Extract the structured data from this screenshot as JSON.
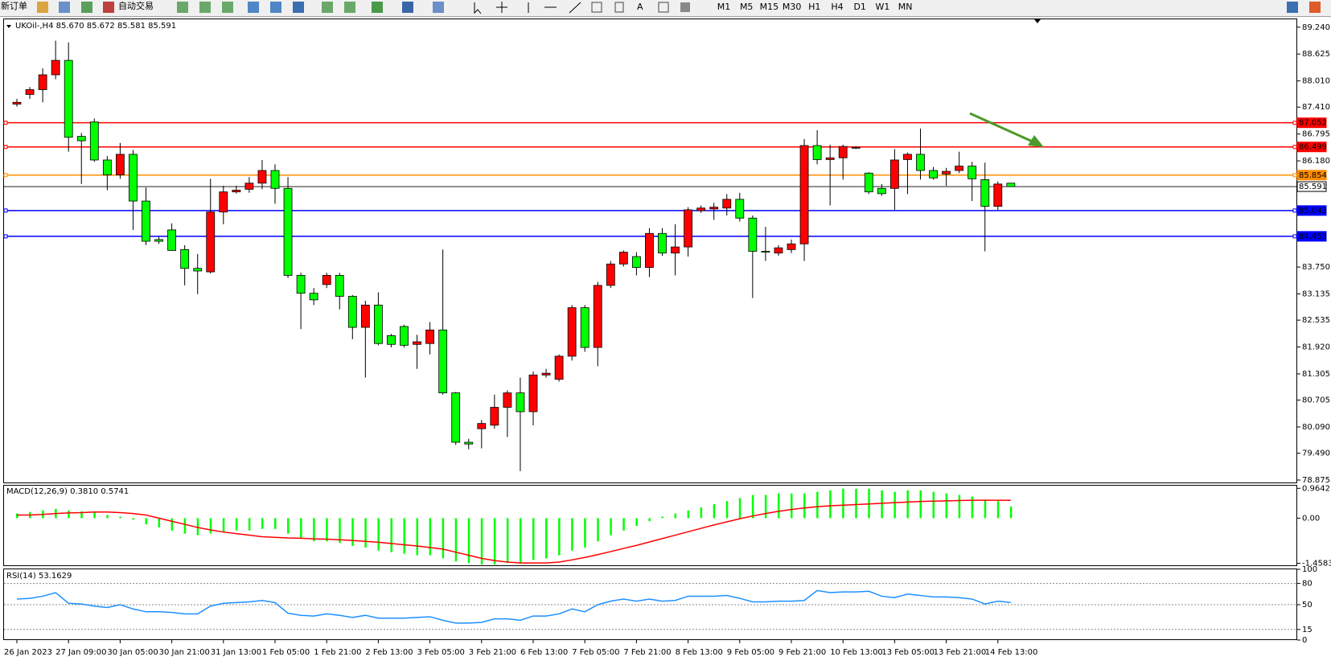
{
  "toolbar": {
    "new_order": "新订单",
    "auto_trading": "自动交易",
    "text_tool": "A",
    "timeframes": [
      "M1",
      "M5",
      "M15",
      "M30",
      "H1",
      "H4",
      "D1",
      "W1",
      "MN"
    ]
  },
  "chart_data": {
    "type": "candlestick",
    "symbol": "UKOil-,H4 85.670 85.672 85.581 85.591",
    "up_color": "#ff0000",
    "down_color": "#00ff00",
    "categories": [
      "26 Jan 2023",
      null,
      null,
      null,
      "27 Jan 09:00",
      null,
      null,
      null,
      "30 Jan 05:00",
      null,
      null,
      null,
      "30 Jan 21:00",
      null,
      null,
      null,
      "31 Jan 13:00",
      null,
      null,
      null,
      "1 Feb 05:00",
      null,
      null,
      null,
      "1 Feb 21:00",
      null,
      null,
      null,
      "2 Feb 13:00",
      null,
      null,
      null,
      "3 Feb 05:00",
      null,
      null,
      null,
      "3 Feb 21:00",
      null,
      null,
      null,
      "6 Feb 13:00",
      null,
      null,
      null,
      "7 Feb 05:00",
      null,
      null,
      null,
      "7 Feb 21:00",
      null,
      null,
      null,
      "8 Feb 13:00",
      null,
      null,
      null,
      "9 Feb 05:00",
      null,
      null,
      null,
      "9 Feb 21:00",
      null,
      null,
      null,
      "10 Feb 13:00",
      null,
      null,
      null,
      "13 Feb 05:00",
      null,
      null,
      null,
      "13 Feb 21:00",
      null,
      null,
      null,
      "14 Feb 13:00",
      null
    ],
    "open": [
      87.48,
      87.7,
      87.81,
      88.15,
      88.48,
      86.74,
      87.07,
      86.2,
      85.86,
      86.33,
      85.26,
      84.38,
      84.6,
      84.15,
      83.72,
      83.64,
      85.01,
      85.47,
      85.53,
      85.67,
      85.96,
      85.55,
      83.56,
      83.15,
      83.35,
      83.56,
      83.08,
      82.37,
      82.88,
      82.18,
      82.39,
      81.98,
      82.0,
      82.31,
      80.87,
      79.74,
      80.05,
      80.13,
      80.54,
      80.87,
      80.44,
      81.28,
      81.18,
      81.71,
      82.82,
      81.91,
      83.33,
      83.82,
      83.99,
      83.74,
      84.52,
      84.07,
      84.21,
      85.04,
      85.08,
      85.1,
      85.3,
      84.87,
      84.11,
      84.07,
      84.15,
      84.28,
      86.53,
      86.21,
      86.25,
      86.47,
      85.9,
      85.55,
      85.55,
      86.21,
      86.33,
      85.96,
      85.88,
      85.96,
      86.06,
      85.75,
      85.14,
      85.67
    ],
    "high": [
      87.6,
      87.87,
      88.3,
      88.93,
      88.89,
      86.82,
      87.15,
      86.29,
      86.59,
      86.43,
      85.57,
      84.44,
      84.75,
      84.25,
      84.05,
      85.77,
      85.61,
      85.61,
      85.81,
      86.2,
      86.1,
      85.81,
      83.62,
      83.27,
      83.62,
      83.62,
      83.11,
      82.98,
      83.17,
      82.22,
      82.43,
      82.2,
      82.49,
      84.15,
      80.89,
      79.82,
      80.25,
      80.83,
      80.93,
      81.22,
      81.36,
      81.42,
      81.75,
      82.88,
      82.88,
      83.41,
      83.89,
      84.13,
      84.09,
      84.64,
      84.64,
      84.73,
      85.12,
      85.16,
      85.22,
      85.42,
      85.45,
      84.93,
      84.67,
      84.25,
      84.38,
      86.68,
      86.88,
      86.55,
      86.55,
      86.51,
      85.92,
      85.65,
      86.45,
      86.37,
      86.92,
      86.04,
      86.02,
      86.39,
      86.16,
      86.14,
      85.71,
      85.672
    ],
    "low": [
      87.42,
      87.6,
      87.52,
      88.05,
      86.39,
      85.65,
      86.16,
      85.51,
      85.77,
      84.6,
      84.25,
      84.28,
      84.13,
      83.33,
      83.13,
      83.6,
      84.73,
      85.43,
      85.45,
      85.53,
      85.2,
      83.5,
      82.33,
      82.88,
      83.27,
      82.78,
      82.1,
      81.22,
      81.96,
      81.91,
      81.91,
      81.42,
      81.75,
      80.83,
      79.68,
      79.58,
      79.6,
      80.05,
      79.86,
      79.08,
      80.13,
      81.22,
      81.13,
      81.61,
      81.81,
      81.48,
      83.27,
      83.76,
      83.56,
      83.52,
      84.01,
      83.56,
      83.99,
      84.99,
      84.83,
      84.93,
      84.79,
      83.04,
      83.89,
      84.01,
      84.07,
      83.89,
      86.1,
      85.16,
      85.75,
      86.45,
      85.42,
      85.38,
      85.06,
      85.42,
      85.75,
      85.75,
      85.61,
      85.9,
      85.26,
      84.11,
      85.06,
      85.581
    ],
    "close": [
      87.52,
      87.81,
      88.15,
      88.48,
      86.72,
      86.64,
      86.2,
      85.86,
      86.33,
      85.26,
      84.34,
      84.34,
      84.13,
      83.72,
      83.66,
      85.01,
      85.47,
      85.51,
      85.67,
      85.96,
      85.55,
      83.56,
      83.15,
      83.0,
      83.56,
      83.08,
      82.37,
      82.88,
      82.0,
      81.98,
      81.96,
      82.04,
      82.31,
      80.87,
      79.74,
      79.7,
      80.17,
      80.54,
      80.87,
      80.44,
      81.28,
      81.32,
      81.71,
      82.82,
      81.91,
      83.33,
      83.82,
      84.09,
      83.74,
      84.52,
      84.07,
      84.21,
      85.06,
      85.1,
      85.12,
      85.3,
      84.87,
      84.11,
      84.09,
      84.19,
      84.28,
      86.53,
      86.21,
      86.25,
      86.51,
      86.49,
      85.47,
      85.43,
      86.2,
      86.33,
      85.96,
      85.79,
      85.94,
      86.06,
      85.77,
      85.14,
      85.65,
      85.591
    ],
    "ylim": [
      78.82,
      89.42
    ],
    "yticks": [
      {
        "value": 89.24,
        "label": "89.240"
      },
      {
        "value": 88.625,
        "label": "88.625"
      },
      {
        "value": 88.01,
        "label": "88.010"
      },
      {
        "value": 87.41,
        "label": "87.410"
      },
      {
        "value": 86.795,
        "label": "86.795"
      },
      {
        "value": 86.18,
        "label": "86.180"
      },
      {
        "value": 83.75,
        "label": "83.750"
      },
      {
        "value": 83.135,
        "label": "83.135"
      },
      {
        "value": 82.535,
        "label": "82.535"
      },
      {
        "value": 81.92,
        "label": "81.920"
      },
      {
        "value": 81.305,
        "label": "81.305"
      },
      {
        "value": 80.705,
        "label": "80.705"
      },
      {
        "value": 80.09,
        "label": "80.090"
      },
      {
        "value": 79.49,
        "label": "79.490"
      },
      {
        "value": 78.875,
        "label": "78.875"
      }
    ],
    "levels": [
      {
        "value": 87.052,
        "color": "#ff0000"
      },
      {
        "value": 86.499,
        "color": "#ff0000"
      },
      {
        "value": 85.854,
        "color": "#ff8c00"
      },
      {
        "value": 85.043,
        "color": "#0000ff"
      },
      {
        "value": 84.453,
        "color": "#0000ff"
      }
    ],
    "bid_line": {
      "value": 85.591,
      "color": "#000000"
    },
    "macd": {
      "title": "MACD(12,26,9) 0.3810 0.5741",
      "histogram_color": "#00ff00",
      "signal_color": "#ff0000",
      "ylim": [
        -1.55,
        1.05
      ],
      "yticks": [
        0.9642,
        {
          "value": 0,
          "label": "0.00"
        },
        -1.4583
      ],
      "histogram": [
        0.15,
        0.2,
        0.25,
        0.3,
        0.25,
        0.22,
        0.18,
        0.1,
        0.05,
        -0.05,
        -0.2,
        -0.3,
        -0.4,
        -0.5,
        -0.55,
        -0.5,
        -0.45,
        -0.4,
        -0.4,
        -0.35,
        -0.35,
        -0.5,
        -0.65,
        -0.75,
        -0.75,
        -0.8,
        -0.9,
        -0.95,
        -1.05,
        -1.1,
        -1.15,
        -1.2,
        -1.2,
        -1.3,
        -1.4,
        -1.45,
        -1.5,
        -1.5,
        -1.45,
        -1.45,
        -1.35,
        -1.3,
        -1.2,
        -1.05,
        -0.95,
        -0.75,
        -0.55,
        -0.4,
        -0.25,
        -0.1,
        0.05,
        0.15,
        0.25,
        0.35,
        0.45,
        0.55,
        0.65,
        0.75,
        0.75,
        0.8,
        0.8,
        0.8,
        0.85,
        0.9,
        0.95,
        0.95,
        0.95,
        0.9,
        0.85,
        0.9,
        0.9,
        0.85,
        0.8,
        0.75,
        0.7,
        0.6,
        0.55,
        0.381
      ],
      "signal": [
        0.1,
        0.1,
        0.12,
        0.15,
        0.17,
        0.18,
        0.2,
        0.2,
        0.18,
        0.15,
        0.1,
        0.0,
        -0.1,
        -0.2,
        -0.3,
        -0.38,
        -0.45,
        -0.5,
        -0.55,
        -0.6,
        -0.62,
        -0.64,
        -0.65,
        -0.67,
        -0.68,
        -0.7,
        -0.72,
        -0.75,
        -0.78,
        -0.82,
        -0.86,
        -0.9,
        -0.95,
        -1.0,
        -1.1,
        -1.2,
        -1.3,
        -1.37,
        -1.42,
        -1.45,
        -1.45,
        -1.45,
        -1.42,
        -1.35,
        -1.27,
        -1.18,
        -1.08,
        -0.98,
        -0.88,
        -0.77,
        -0.66,
        -0.55,
        -0.44,
        -0.33,
        -0.22,
        -0.12,
        -0.02,
        0.07,
        0.15,
        0.22,
        0.28,
        0.33,
        0.37,
        0.4,
        0.42,
        0.44,
        0.46,
        0.48,
        0.5,
        0.52,
        0.54,
        0.55,
        0.56,
        0.57,
        0.58,
        0.58,
        0.58,
        0.5741
      ]
    },
    "rsi": {
      "title": "RSI(14) 53.1629",
      "color": "#1e90ff",
      "ylim": [
        0,
        100
      ],
      "yticks": [
        100,
        80,
        50,
        15,
        0
      ],
      "values": [
        58,
        59,
        62,
        67,
        52,
        51,
        48,
        46,
        50,
        44,
        40,
        40,
        39,
        37,
        37,
        48,
        52,
        53,
        54,
        56,
        53,
        38,
        35,
        34,
        37,
        35,
        32,
        35,
        31,
        31,
        31,
        32,
        33,
        28,
        24,
        24,
        25,
        30,
        30,
        28,
        34,
        34,
        37,
        44,
        40,
        50,
        55,
        58,
        55,
        58,
        55,
        56,
        62,
        62,
        62,
        63,
        59,
        54,
        54,
        55,
        55,
        56,
        70,
        67,
        68,
        68,
        69,
        62,
        60,
        65,
        63,
        61,
        61,
        60,
        58,
        51,
        55,
        53.1629
      ]
    }
  }
}
